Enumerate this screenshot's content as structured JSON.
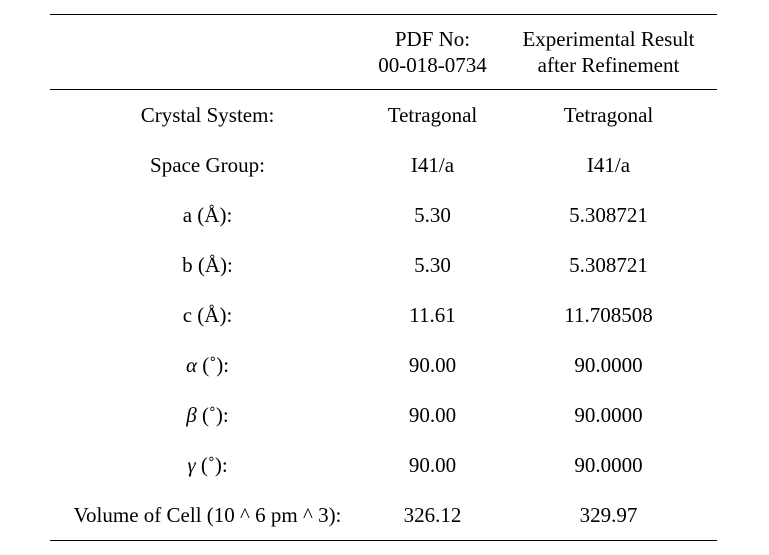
{
  "table": {
    "header": {
      "col1": "",
      "col2_line1": "PDF No:",
      "col2_line2": "00-018-0734",
      "col3_line1": "Experimental Result",
      "col3_line2": "after Refinement"
    },
    "rows": [
      {
        "label": "Crystal System:",
        "pdf": "Tetragonal",
        "exp": "Tetragonal"
      },
      {
        "label": "Space Group:",
        "pdf": "I41/a",
        "exp": "I41/a"
      },
      {
        "label": "a (Å):",
        "pdf": "5.30",
        "exp": "5.308721"
      },
      {
        "label": "b (Å):",
        "pdf": "5.30",
        "exp": "5.308721"
      },
      {
        "label": "c (Å):",
        "pdf": "11.61",
        "exp": "11.708508"
      },
      {
        "symbol": "α",
        "unit": " (˚):",
        "pdf": "90.00",
        "exp": "90.0000"
      },
      {
        "symbol": "β",
        "unit": " (˚):",
        "pdf": "90.00",
        "exp": "90.0000"
      },
      {
        "symbol": "γ",
        "unit": " (˚):",
        "pdf": "90.00",
        "exp": "90.0000"
      },
      {
        "label": "Volume of Cell (10 ^ 6 pm ^ 3):",
        "pdf": "326.12",
        "exp": "329.97"
      }
    ]
  }
}
